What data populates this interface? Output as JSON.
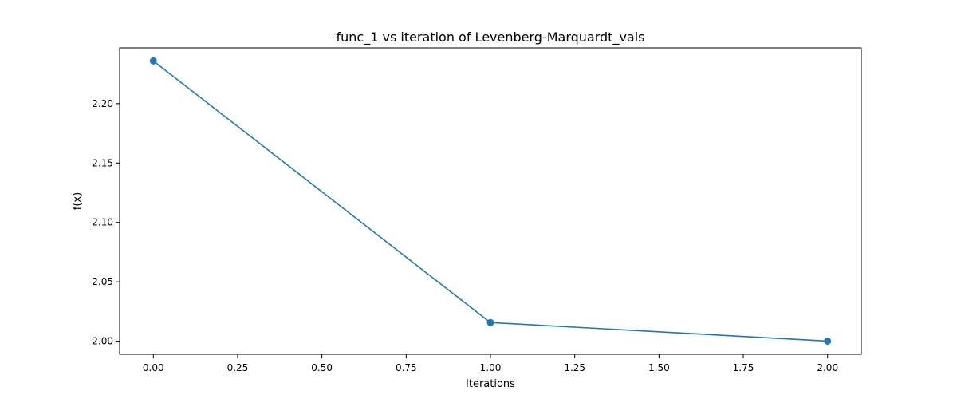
{
  "chart_data": {
    "type": "line",
    "title": "func_1 vs iteration of Levenberg-Marquardt_vals",
    "xlabel": "Iterations",
    "ylabel": "f(x)",
    "x": [
      0,
      1,
      2
    ],
    "series": [
      {
        "values": [
          2.2359,
          2.0157,
          2.0001
        ],
        "color": "#1f77b4",
        "marker": "circle"
      }
    ],
    "xlim": [
      -0.1,
      2.1
    ],
    "ylim": [
      1.989,
      2.2469
    ],
    "xticks": [
      0.0,
      0.25,
      0.5,
      0.75,
      1.0,
      1.25,
      1.5,
      1.75,
      2.0
    ],
    "xtick_labels": [
      "0.00",
      "0.25",
      "0.50",
      "0.75",
      "1.00",
      "1.25",
      "1.50",
      "1.75",
      "2.00"
    ],
    "yticks": [
      2.0,
      2.05,
      2.1,
      2.15,
      2.2
    ],
    "ytick_labels": [
      "2.00",
      "2.05",
      "2.10",
      "2.15",
      "2.20"
    ],
    "grid": false,
    "legend": "none"
  }
}
